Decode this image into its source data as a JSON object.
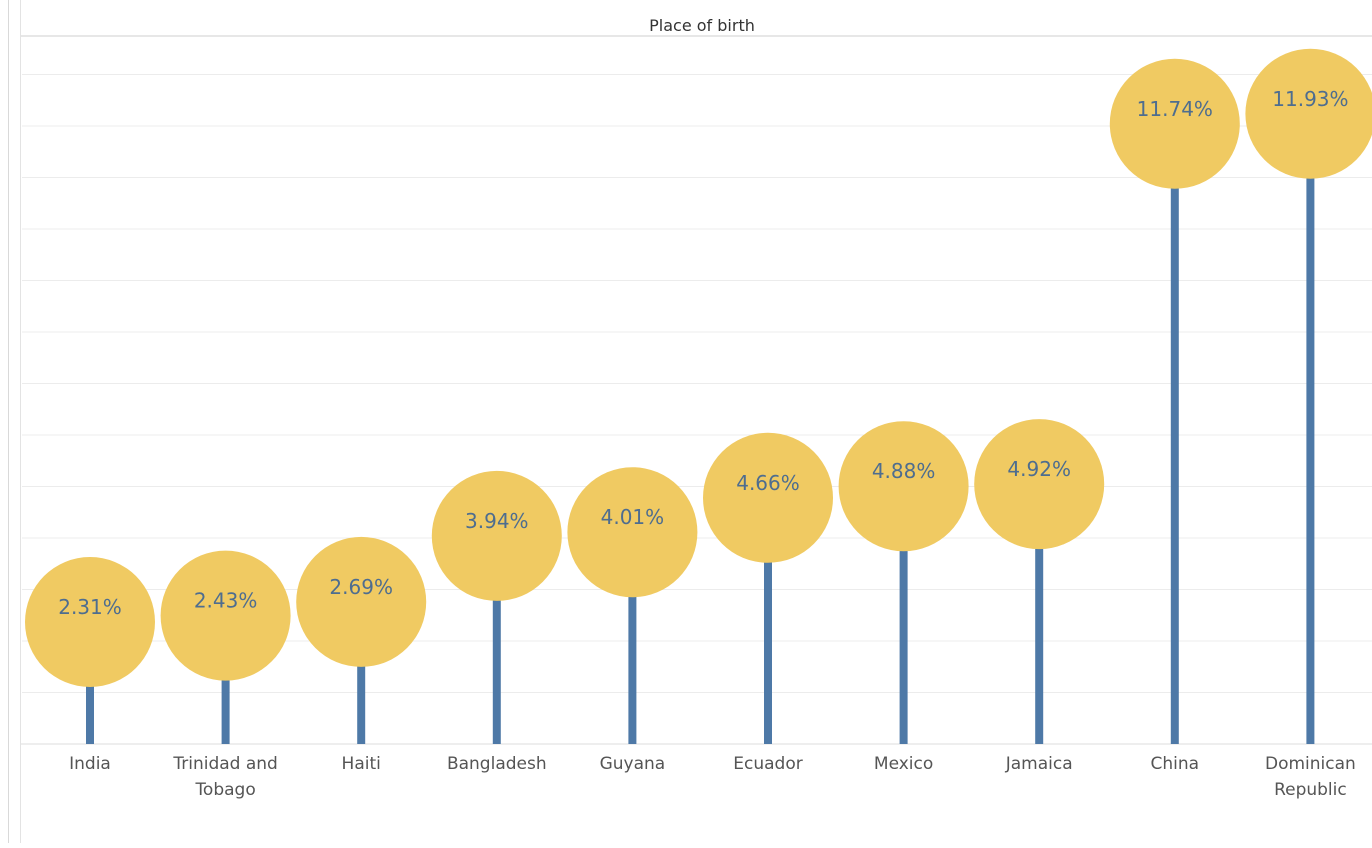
{
  "colors": {
    "stem": "#4e79a7",
    "bubble": "#f0ca62",
    "bubble_label": "#4e6d8f",
    "gridline": "#ececec",
    "axis_text": "#555555",
    "title": "#333333"
  },
  "chart_data": {
    "type": "lollipop",
    "title": "Place of birth",
    "xlabel": "",
    "ylabel": "",
    "ylim": [
      0,
      13
    ],
    "grid": true,
    "categories": [
      "India",
      "Trinidad and Tobago",
      "Haiti",
      "Bangladesh",
      "Guyana",
      "Ecuador",
      "Mexico",
      "Jamaica",
      "China",
      "Dominican Republic"
    ],
    "values": [
      2.31,
      2.43,
      2.69,
      3.94,
      4.01,
      4.66,
      4.88,
      4.92,
      11.74,
      11.93
    ],
    "labels": [
      "2.31%",
      "2.43%",
      "2.69%",
      "3.94%",
      "4.01%",
      "4.66%",
      "4.88%",
      "4.92%",
      "11.74%",
      "11.93%"
    ]
  }
}
